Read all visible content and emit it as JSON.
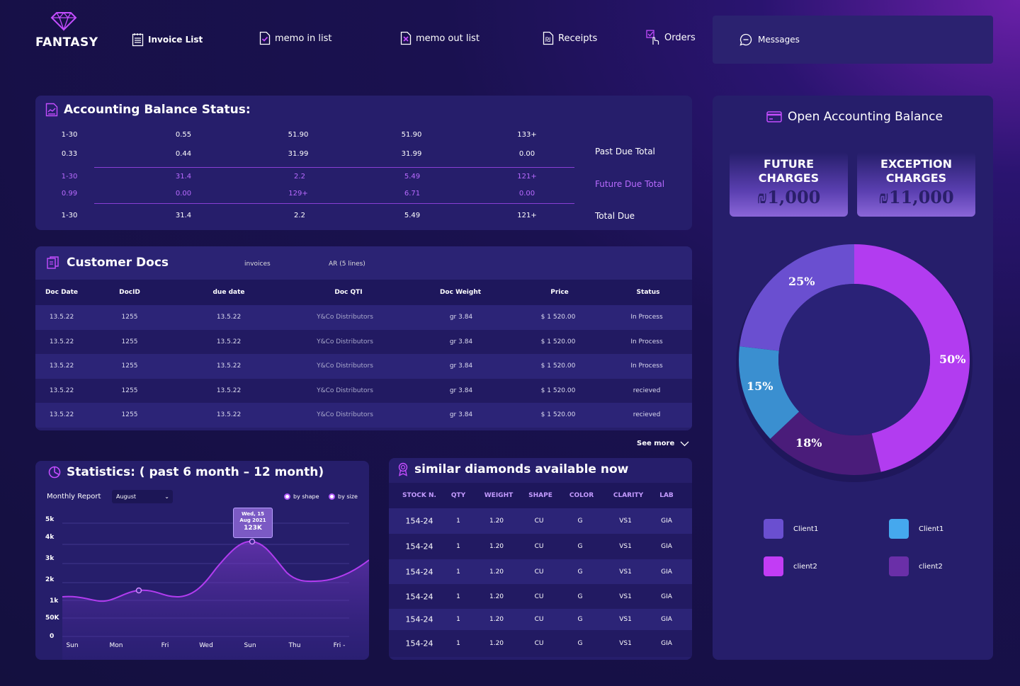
{
  "brand": {
    "name": "FANTASY",
    "logo_icon": "diamond-icon"
  },
  "nav": {
    "items": [
      {
        "label": "Invoice List",
        "icon": "invoice-icon"
      },
      {
        "label": "memo in list",
        "icon": "memo-in-icon"
      },
      {
        "label": "memo out list",
        "icon": "memo-out-icon"
      },
      {
        "label": "Receipts",
        "icon": "receipt-icon"
      },
      {
        "label": "Orders",
        "icon": "orders-icon"
      }
    ],
    "messages": {
      "label": "Messages",
      "icon": "chat-icon"
    }
  },
  "accounting": {
    "title": "Accounting Balance Status:",
    "rows": [
      [
        "1-30",
        "0.55",
        "51.90",
        "51.90",
        "133+"
      ],
      [
        "0.33",
        "0.44",
        "31.99",
        "31.99",
        "0.00"
      ],
      [
        "1-30",
        "31.4",
        "2.2",
        "5.49",
        "121+"
      ],
      [
        "0.99",
        "0.00",
        "129+",
        "6.71",
        "0.00"
      ],
      [
        "1-30",
        "31.4",
        "2.2",
        "5.49",
        "121+"
      ]
    ],
    "labels": {
      "past_due": "Past Due Total",
      "future_due": "Future Due Total",
      "total_due": "Total Due"
    }
  },
  "customer_docs": {
    "title": "Customer Docs",
    "tabs": [
      "invoices",
      "AR (5 lines)"
    ],
    "columns": [
      "Doc Date",
      "DocID",
      "due date",
      "Doc QTI",
      "Doc Weight",
      "Price",
      "Status"
    ],
    "rows": [
      [
        "13.5.22",
        "1255",
        "13.5.22",
        "Y&Co Distributors",
        "gr 3.84",
        "$ 1 520.00",
        "In Process"
      ],
      [
        "13.5.22",
        "1255",
        "13.5.22",
        "Y&Co Distributors",
        "gr 3.84",
        "$ 1 520.00",
        "In Process"
      ],
      [
        "13.5.22",
        "1255",
        "13.5.22",
        "Y&Co Distributors",
        "gr 3.84",
        "$ 1 520.00",
        "In Process"
      ],
      [
        "13.5.22",
        "1255",
        "13.5.22",
        "Y&Co Distributors",
        "gr 3.84",
        "$ 1 520.00",
        "recieved"
      ],
      [
        "13.5.22",
        "1255",
        "13.5.22",
        "Y&Co Distributors",
        "gr 3.84",
        "$ 1 520.00",
        "recieved"
      ]
    ],
    "see_more": "See more"
  },
  "statistics": {
    "title": "Statistics: ( past 6 month – 12 month)",
    "report_label": "Monthly Report",
    "month_selected": "August",
    "options": [
      "by shape",
      "by size"
    ],
    "y_labels": [
      "5k",
      "4k",
      "3k",
      "2k",
      "1k",
      "50K",
      "0"
    ],
    "x_labels": [
      "Sun",
      "Mon",
      "Fri",
      "Wed",
      "Sun",
      "Thu",
      "Fri -"
    ],
    "tooltip": {
      "line1": "Wed, 15",
      "line2": "Aug 2021",
      "value": "123K"
    }
  },
  "similar_diamonds": {
    "title": "similar diamonds available now",
    "columns": [
      "STOCK N.",
      "QTY",
      "WEIGHT",
      "SHAPE",
      "COLOR",
      "CLARITY",
      "LAB"
    ],
    "rows": [
      [
        "154-24",
        "1",
        "1.20",
        "CU",
        "G",
        "VS1",
        "GIA"
      ],
      [
        "154-24",
        "1",
        "1.20",
        "CU",
        "G",
        "VS1",
        "GIA"
      ],
      [
        "154-24",
        "1",
        "1.20",
        "CU",
        "G",
        "VS1",
        "GIA"
      ],
      [
        "154-24",
        "1",
        "1.20",
        "CU",
        "G",
        "VS1",
        "GIA"
      ],
      [
        "154-24",
        "1",
        "1.20",
        "CU",
        "G",
        "VS1",
        "GIA"
      ],
      [
        "154-24",
        "1",
        "1.20",
        "CU",
        "G",
        "VS1",
        "GIA"
      ]
    ]
  },
  "open_balance": {
    "title": "Open Accounting Balance",
    "cards": [
      {
        "title_line1": "FUTURE",
        "title_line2": "CHARGES",
        "value": "₪1,000"
      },
      {
        "title_line1": "EXCEPTION",
        "title_line2": "CHARGES",
        "value": "₪11,000"
      }
    ],
    "donut": [
      {
        "label": "50%",
        "value": 50,
        "color": "#b23cf0"
      },
      {
        "label": "18%",
        "value": 18,
        "color": "#4a1c7a"
      },
      {
        "label": "15%",
        "value": 15,
        "color": "#3a8fd0"
      },
      {
        "label": "25%",
        "value": 25,
        "color": "#6a4fd0"
      }
    ],
    "legend": [
      {
        "label": "Client1",
        "color": "#6a4fd0"
      },
      {
        "label": "Client1",
        "color": "#45a8ee"
      },
      {
        "label": "client2",
        "color": "#c23cf5"
      },
      {
        "label": "client2",
        "color": "#6a2fa8"
      }
    ]
  }
}
